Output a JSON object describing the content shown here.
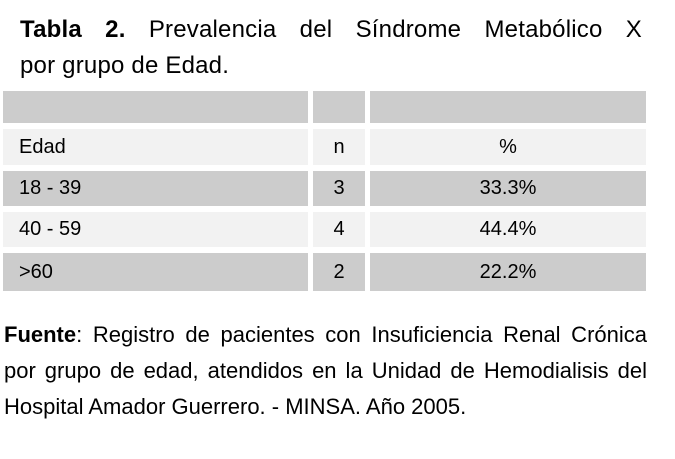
{
  "colors": {
    "background": "#ffffff",
    "row_gray": "#cccccc",
    "row_light": "#f2f2f2",
    "text": "#000000"
  },
  "title": {
    "bold": "Tabla 2.",
    "line1_rest": " Prevalencia del Síndrome Metabólico X",
    "line2": "por grupo de Edad."
  },
  "table": {
    "columns": {
      "edad": "Edad",
      "n": "n",
      "pct": "%"
    },
    "rows": [
      {
        "edad": "18 - 39",
        "n": "3",
        "pct": "33.3%"
      },
      {
        "edad": "40 - 59",
        "n": "4",
        "pct": "44.4%"
      },
      {
        "edad": ">60",
        "n": "2",
        "pct": "22.2%"
      }
    ]
  },
  "footer": {
    "bold": "Fuente",
    "line1_rest": ": Registro de pacientes con Insuficiencia Renal Crónica",
    "line2": "por grupo de edad, atendidos en la Unidad de Hemodialisis del",
    "line3": "Hospital Amador Guerrero. - MINSA. Año 2005."
  }
}
